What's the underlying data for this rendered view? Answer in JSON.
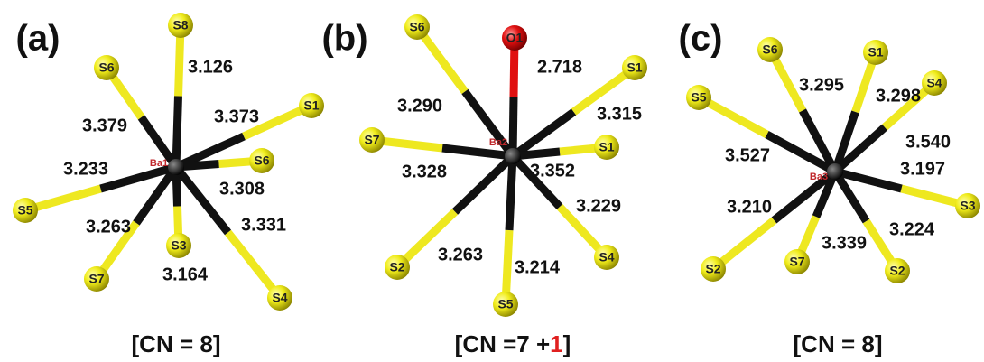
{
  "panels": [
    {
      "label": "(a)",
      "center": "Ba1",
      "ligands": [
        {
          "atom": "S8",
          "bond": "3.126"
        },
        {
          "atom": "S6",
          "bond": "3.379"
        },
        {
          "atom": "S1",
          "bond": "3.373"
        },
        {
          "atom": "S6",
          "bond": "3.308"
        },
        {
          "atom": "S5",
          "bond": "3.233"
        },
        {
          "atom": "S3",
          "bond": "3.164"
        },
        {
          "atom": "S7",
          "bond": "3.263"
        },
        {
          "atom": "S4",
          "bond": "3.331"
        }
      ],
      "caption": [
        "[CN = 8]"
      ]
    },
    {
      "label": "(b)",
      "center": "Ba2",
      "ligands": [
        {
          "atom": "O1",
          "bond": "2.718"
        },
        {
          "atom": "S6",
          "bond": "3.290"
        },
        {
          "atom": "S1",
          "bond": "3.315"
        },
        {
          "atom": "S7",
          "bond": "3.328"
        },
        {
          "atom": "S1",
          "bond": "3.352"
        },
        {
          "atom": "S4",
          "bond": "3.229"
        },
        {
          "atom": "S2",
          "bond": "3.263"
        },
        {
          "atom": "S5",
          "bond": "3.214"
        }
      ],
      "caption": [
        "[CN =7 +",
        "1",
        "]"
      ]
    },
    {
      "label": "(c)",
      "center": "Ba3",
      "ligands": [
        {
          "atom": "S6",
          "bond": "3.295"
        },
        {
          "atom": "S1",
          "bond": "3.298"
        },
        {
          "atom": "S4",
          "bond": "3.540"
        },
        {
          "atom": "S5",
          "bond": "3.527"
        },
        {
          "atom": "S3",
          "bond": "3.197"
        },
        {
          "atom": "S2",
          "bond": "3.210"
        },
        {
          "atom": "S7",
          "bond": "3.339"
        },
        {
          "atom": "S2",
          "bond": "3.224"
        }
      ],
      "caption": [
        "[CN = 8]"
      ]
    }
  ]
}
